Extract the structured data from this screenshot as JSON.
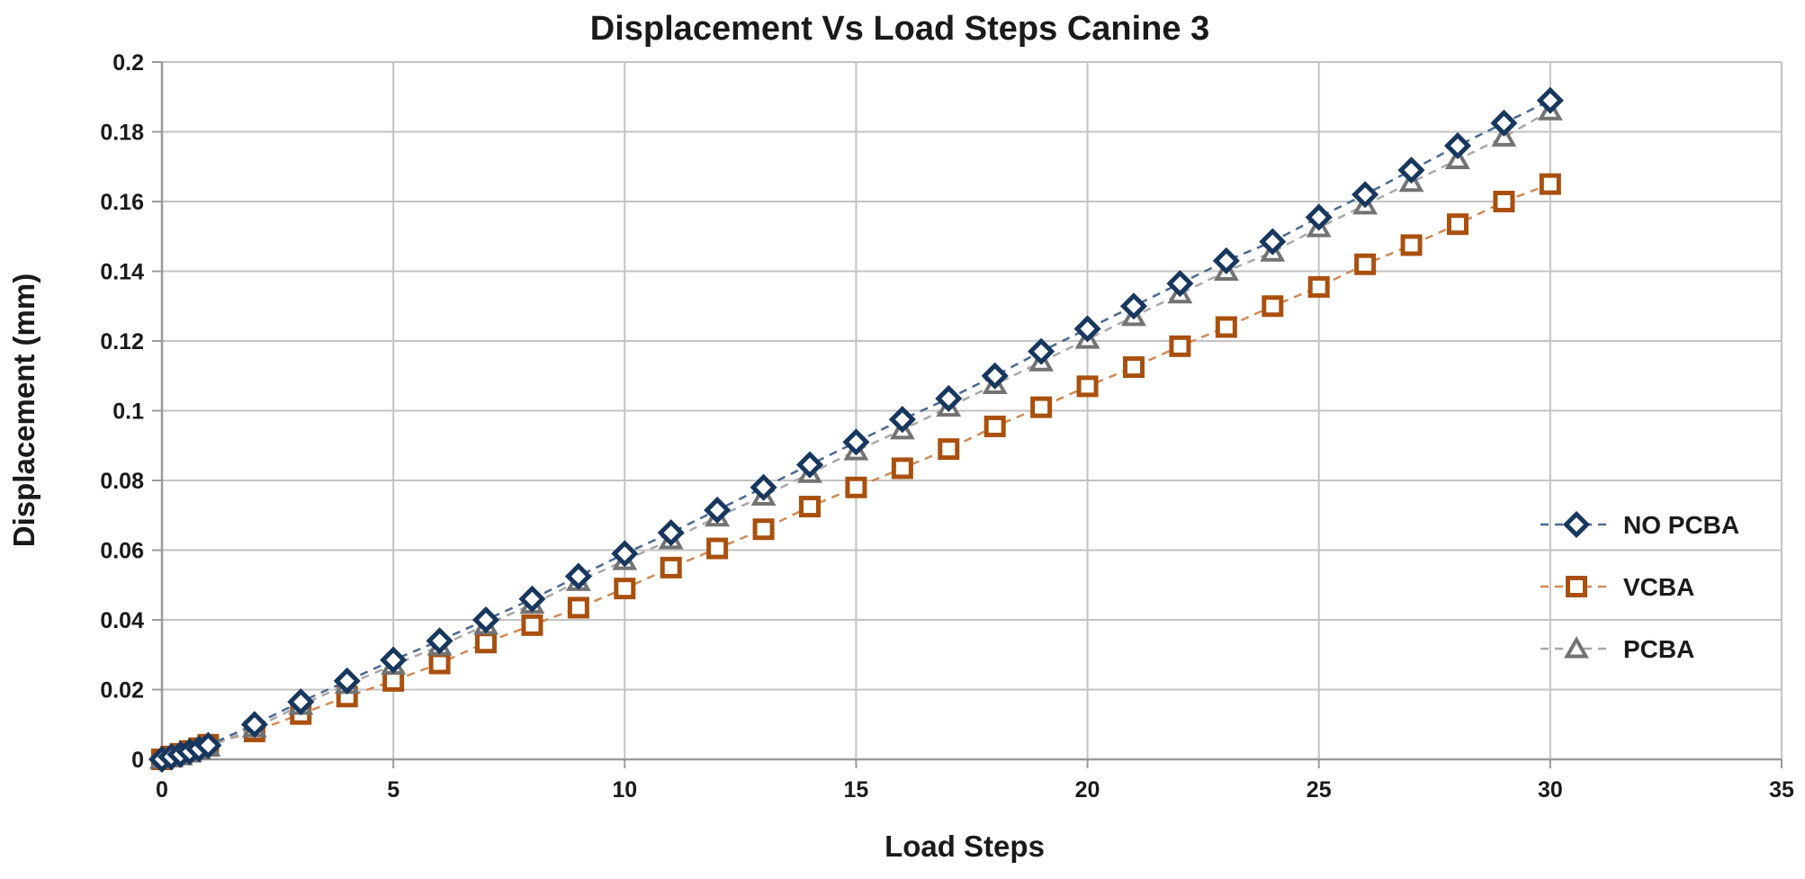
{
  "chart_data": {
    "type": "line",
    "title": "Displacement Vs Load Steps Canine 3",
    "xlabel": "Load Steps",
    "ylabel": "Displacement (mm)",
    "xlim": [
      0,
      35
    ],
    "ylim": [
      0,
      0.2
    ],
    "x_ticks": [
      "0",
      "5",
      "10",
      "15",
      "20",
      "25",
      "30",
      "35"
    ],
    "y_ticks": [
      "0",
      "0.02",
      "0.04",
      "0.06",
      "0.08",
      "0.1",
      "0.12",
      "0.14",
      "0.16",
      "0.18",
      "0.2"
    ],
    "grid": true,
    "legend_position": "right-middle",
    "colors": {
      "gridline": "#c3c3c3",
      "axis": "#9a9a9a",
      "text": "#1a1a1a",
      "background": "#ffffff"
    },
    "series": [
      {
        "name": "NO PCBA",
        "marker": "diamond",
        "color": "#17375e",
        "line_color": "#4a6990",
        "x": [
          0,
          0.2,
          0.4,
          0.6,
          0.8,
          1,
          2,
          3,
          4,
          5,
          6,
          7,
          8,
          9,
          10,
          11,
          12,
          13,
          14,
          15,
          16,
          17,
          18,
          19,
          20,
          21,
          22,
          23,
          24,
          25,
          26,
          27,
          28,
          29,
          30
        ],
        "y": [
          0,
          0.0007,
          0.0014,
          0.0022,
          0.003,
          0.004,
          0.01,
          0.0165,
          0.0225,
          0.0285,
          0.034,
          0.04,
          0.046,
          0.0525,
          0.059,
          0.065,
          0.0715,
          0.078,
          0.0845,
          0.091,
          0.0975,
          0.1035,
          0.11,
          0.117,
          0.1235,
          0.13,
          0.1365,
          0.143,
          0.1485,
          0.1555,
          0.162,
          0.169,
          0.176,
          0.1825,
          0.189
        ]
      },
      {
        "name": "VCBA",
        "marker": "square",
        "color": "#a9500e",
        "line_color": "#d08a55",
        "x": [
          0,
          0.2,
          0.4,
          0.6,
          0.8,
          1,
          2,
          3,
          4,
          5,
          6,
          7,
          8,
          9,
          10,
          11,
          12,
          13,
          14,
          15,
          16,
          17,
          18,
          19,
          20,
          21,
          22,
          23,
          24,
          25,
          26,
          27,
          28,
          29,
          30
        ],
        "y": [
          0,
          0.0008,
          0.0016,
          0.0024,
          0.0032,
          0.0042,
          0.008,
          0.013,
          0.018,
          0.0225,
          0.0275,
          0.0335,
          0.0385,
          0.0435,
          0.049,
          0.055,
          0.0605,
          0.066,
          0.0725,
          0.078,
          0.0835,
          0.089,
          0.0955,
          0.101,
          0.107,
          0.1125,
          0.1185,
          0.124,
          0.13,
          0.1355,
          0.142,
          0.1475,
          0.1535,
          0.16,
          0.165
        ]
      },
      {
        "name": "PCBA",
        "marker": "triangle",
        "color": "#737373",
        "line_color": "#a8a8a8",
        "x": [
          0,
          0.2,
          0.4,
          0.6,
          0.8,
          1,
          2,
          3,
          4,
          5,
          6,
          7,
          8,
          9,
          10,
          11,
          12,
          13,
          14,
          15,
          16,
          17,
          18,
          19,
          20,
          21,
          22,
          23,
          24,
          25,
          26,
          27,
          28,
          29,
          30
        ],
        "y": [
          0,
          0.0005,
          0.001,
          0.0018,
          0.0026,
          0.0035,
          0.009,
          0.0155,
          0.0215,
          0.027,
          0.0325,
          0.0385,
          0.0445,
          0.051,
          0.057,
          0.063,
          0.0695,
          0.0755,
          0.082,
          0.0885,
          0.0945,
          0.101,
          0.1075,
          0.114,
          0.1205,
          0.127,
          0.1335,
          0.14,
          0.1455,
          0.1525,
          0.159,
          0.1655,
          0.172,
          0.1785,
          0.186
        ]
      }
    ]
  }
}
